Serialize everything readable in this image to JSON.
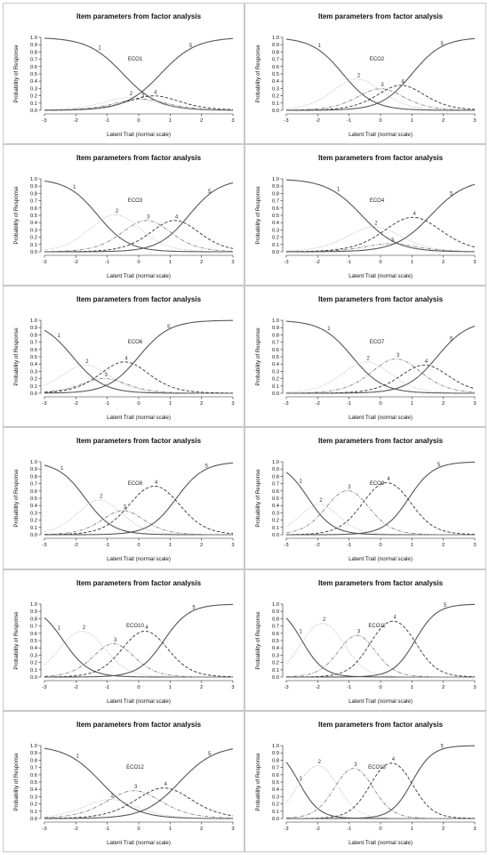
{
  "chart_data": [
    {
      "type": "line",
      "title": "Item parameters from factor analysis",
      "xlabel": "Latent Trait (normal scale)",
      "ylabel": "Probability of Response",
      "xlim": [
        -3,
        3
      ],
      "ylim": [
        0,
        1
      ],
      "xticks": [
        "-3",
        "-2",
        "-1",
        "0",
        "1",
        "2",
        "3"
      ],
      "yticks": [
        "0.0",
        "0.1",
        "0.2",
        "0.3",
        "0.4",
        "0.5",
        "0.6",
        "0.7",
        "0.8",
        "0.9",
        "1.0"
      ],
      "annotations": [
        "ECO1"
      ],
      "category_labels": [
        "1",
        "2",
        "3",
        "4",
        "5"
      ],
      "params": {
        "a": 1.05,
        "b": [
          -0.5,
          -0.1,
          0.25,
          0.7
        ]
      }
    },
    {
      "type": "line",
      "title": "Item parameters from factor analysis",
      "xlabel": "Latent Trait (normal scale)",
      "ylabel": "Probability of Response",
      "xlim": [
        -3,
        3
      ],
      "ylim": [
        0,
        1
      ],
      "xticks": [
        "-3",
        "-2",
        "-1",
        "0",
        "1",
        "2",
        "3"
      ],
      "yticks": [
        "0.0",
        "0.1",
        "0.2",
        "0.3",
        "0.4",
        "0.5",
        "0.6",
        "0.7",
        "0.8",
        "0.9",
        "1.0"
      ],
      "annotations": [
        "ECO2"
      ],
      "category_labels": [
        "1",
        "2",
        "3",
        "4",
        "5"
      ],
      "params": {
        "a": 1.2,
        "b": [
          -1.2,
          -0.3,
          0.3,
          1.0
        ]
      }
    },
    {
      "type": "line",
      "title": "Item parameters from factor analysis",
      "xlabel": "Latent Trait (normal scale)",
      "ylabel": "Probability of Response",
      "xlim": [
        -3,
        3
      ],
      "ylim": [
        0,
        1
      ],
      "xticks": [
        "-3",
        "-2",
        "-1",
        "0",
        "1",
        "2",
        "3"
      ],
      "yticks": [
        "0.0",
        "0.1",
        "0.2",
        "0.3",
        "0.4",
        "0.5",
        "0.6",
        "0.7",
        "0.8",
        "0.9",
        "1.0"
      ],
      "annotations": [
        "ECO3"
      ],
      "category_labels": [
        "1",
        "2",
        "3",
        "4",
        "5"
      ],
      "params": {
        "a": 1.2,
        "b": [
          -1.3,
          -0.2,
          0.7,
          1.6
        ]
      }
    },
    {
      "type": "line",
      "title": "Item parameters from factor analysis",
      "xlabel": "Latent Trait (normal scale)",
      "ylabel": "Probability of Response",
      "xlim": [
        -3,
        3
      ],
      "ylim": [
        0,
        1
      ],
      "xticks": [
        "-3",
        "-2",
        "-1",
        "0",
        "1",
        "2",
        "3"
      ],
      "yticks": [
        "0.0",
        "0.1",
        "0.2",
        "0.3",
        "0.4",
        "0.5",
        "0.6",
        "0.7",
        "0.8",
        "0.9",
        "1.0"
      ],
      "annotations": [
        "ECO4"
      ],
      "category_labels": [
        "1",
        "2",
        "3",
        "4",
        "5"
      ],
      "params": {
        "a": 1.05,
        "b": [
          -0.6,
          0.2,
          0.45,
          1.6
        ]
      }
    },
    {
      "type": "line",
      "title": "Item parameters from factor analysis",
      "xlabel": "Latent Trait (normal scale)",
      "ylabel": "Probability of Response",
      "xlim": [
        -3,
        3
      ],
      "ylim": [
        0,
        1
      ],
      "xticks": [
        "-3",
        "-2",
        "-1",
        "0",
        "1",
        "2",
        "3"
      ],
      "yticks": [
        "0.0",
        "0.1",
        "0.2",
        "0.3",
        "0.4",
        "0.5",
        "0.6",
        "0.7",
        "0.8",
        "0.9",
        "1.0"
      ],
      "annotations": [
        "ECO6"
      ],
      "category_labels": [
        "1",
        "2",
        "3",
        "4",
        "5"
      ],
      "params": {
        "a": 1.2,
        "b": [
          -2.1,
          -1.3,
          -0.9,
          0.0
        ]
      }
    },
    {
      "type": "line",
      "title": "Item parameters from factor analysis",
      "xlabel": "Latent Trait (normal scale)",
      "ylabel": "Probability of Response",
      "xlim": [
        -3,
        3
      ],
      "ylim": [
        0,
        1
      ],
      "xticks": [
        "-3",
        "-2",
        "-1",
        "0",
        "1",
        "2",
        "3"
      ],
      "yticks": [
        "0.0",
        "0.1",
        "0.2",
        "0.3",
        "0.4",
        "0.5",
        "0.6",
        "0.7",
        "0.8",
        "0.9",
        "1.0"
      ],
      "annotations": [
        "ECO7"
      ],
      "category_labels": [
        "1",
        "2",
        "3",
        "4",
        "5"
      ],
      "params": {
        "a": 1.2,
        "b": [
          -0.9,
          0.0,
          1.0,
          1.8
        ]
      }
    },
    {
      "type": "line",
      "title": "Item parameters from factor analysis",
      "xlabel": "Latent Trait (normal scale)",
      "ylabel": "Probability of Response",
      "xlim": [
        -3,
        3
      ],
      "ylim": [
        0,
        1
      ],
      "xticks": [
        "-3",
        "-2",
        "-1",
        "0",
        "1",
        "2",
        "3"
      ],
      "yticks": [
        "0.0",
        "0.1",
        "0.2",
        "0.3",
        "0.4",
        "0.5",
        "0.6",
        "0.7",
        "0.8",
        "0.9",
        "1.0"
      ],
      "annotations": [
        "ECO8"
      ],
      "category_labels": [
        "1",
        "2",
        "3",
        "4",
        "5"
      ],
      "params": {
        "a": 1.35,
        "b": [
          -1.7,
          -0.8,
          -0.2,
          1.2
        ]
      }
    },
    {
      "type": "line",
      "title": "Item parameters from factor analysis",
      "xlabel": "Latent Trait (normal scale)",
      "ylabel": "Probability of Response",
      "xlim": [
        -3,
        3
      ],
      "ylim": [
        0,
        1
      ],
      "xticks": [
        "-3",
        "-2",
        "-1",
        "0",
        "1",
        "2",
        "3"
      ],
      "yticks": [
        "0.0",
        "0.1",
        "0.2",
        "0.3",
        "0.4",
        "0.5",
        "0.6",
        "0.7",
        "0.8",
        "0.9",
        "1.0"
      ],
      "annotations": [
        "ECO9"
      ],
      "category_labels": [
        "1",
        "2",
        "3",
        "4",
        "5"
      ],
      "params": {
        "a": 1.5,
        "b": [
          -2.3,
          -1.6,
          -0.5,
          0.9
        ]
      }
    },
    {
      "type": "line",
      "title": "Item parameters from factor analysis",
      "xlabel": "Latent Trait (normal scale)",
      "ylabel": "Probability of Response",
      "xlim": [
        -3,
        3
      ],
      "ylim": [
        0,
        1
      ],
      "xticks": [
        "-3",
        "-2",
        "-1",
        "0",
        "1",
        "2",
        "3"
      ],
      "yticks": [
        "0.0",
        "0.1",
        "0.2",
        "0.3",
        "0.4",
        "0.5",
        "0.6",
        "0.7",
        "0.8",
        "0.9",
        "1.0"
      ],
      "annotations": [
        "ECO10"
      ],
      "category_labels": [
        "1",
        "2",
        "3",
        "4",
        "5"
      ],
      "params": {
        "a": 1.45,
        "b": [
          -2.4,
          -1.2,
          -0.4,
          0.8
        ]
      }
    },
    {
      "type": "line",
      "title": "Item parameters from factor analysis",
      "xlabel": "Latent Trait (normal scale)",
      "ylabel": "Probability of Response",
      "xlim": [
        -3,
        3
      ],
      "ylim": [
        0,
        1
      ],
      "xticks": [
        "-3",
        "-2",
        "-1",
        "0",
        "1",
        "2",
        "3"
      ],
      "yticks": [
        "0.0",
        "0.1",
        "0.2",
        "0.3",
        "0.4",
        "0.5",
        "0.6",
        "0.7",
        "0.8",
        "0.9",
        "1.0"
      ],
      "annotations": [
        "ECO11"
      ],
      "category_labels": [
        "1",
        "2",
        "3",
        "4",
        "5"
      ],
      "params": {
        "a": 1.7,
        "b": [
          -2.5,
          -1.2,
          -0.3,
          1.1
        ]
      }
    },
    {
      "type": "line",
      "title": "Item parameters from factor analysis",
      "xlabel": "Latent Trait (normal scale)",
      "ylabel": "Probability of Response",
      "xlim": [
        -3,
        3
      ],
      "ylim": [
        0,
        1
      ],
      "xticks": [
        "-3",
        "-2",
        "-1",
        "0",
        "1",
        "2",
        "3"
      ],
      "yticks": [
        "0.0",
        "0.1",
        "0.2",
        "0.3",
        "0.4",
        "0.5",
        "0.6",
        "0.7",
        "0.8",
        "0.9",
        "1.0"
      ],
      "annotations": [
        "ECO12"
      ],
      "category_labels": [
        "1",
        "2",
        "3",
        "4",
        "5"
      ],
      "params": {
        "a": 1.05,
        "b": [
          -1.2,
          -0.6,
          0.3,
          1.3
        ]
      }
    },
    {
      "type": "line",
      "title": "Item parameters from factor analysis",
      "xlabel": "Latent Trait (normal scale)",
      "ylabel": "Probability of Response",
      "xlim": [
        -3,
        3
      ],
      "ylim": [
        0,
        1
      ],
      "xticks": [
        "-3",
        "-2",
        "-1",
        "0",
        "1",
        "2",
        "3"
      ],
      "yticks": [
        "0.0",
        "0.1",
        "0.2",
        "0.3",
        "0.4",
        "0.5",
        "0.6",
        "0.7",
        "0.8",
        "0.9",
        "1.0"
      ],
      "annotations": [
        "ECO13"
      ],
      "category_labels": [
        "1",
        "2",
        "3",
        "4",
        "5"
      ],
      "params": {
        "a": 1.8,
        "b": [
          -2.6,
          -1.4,
          -0.3,
          1.0
        ]
      }
    }
  ],
  "colors": {
    "background": "#ffffff",
    "panel_border": "#c8c8c8",
    "curves": [
      "#555555",
      "#aaaaaa",
      "#777777",
      "#333333",
      "#555555"
    ]
  },
  "curve_styles": [
    "solid",
    "dotted",
    "dot-dash",
    "dashed",
    "solid"
  ]
}
